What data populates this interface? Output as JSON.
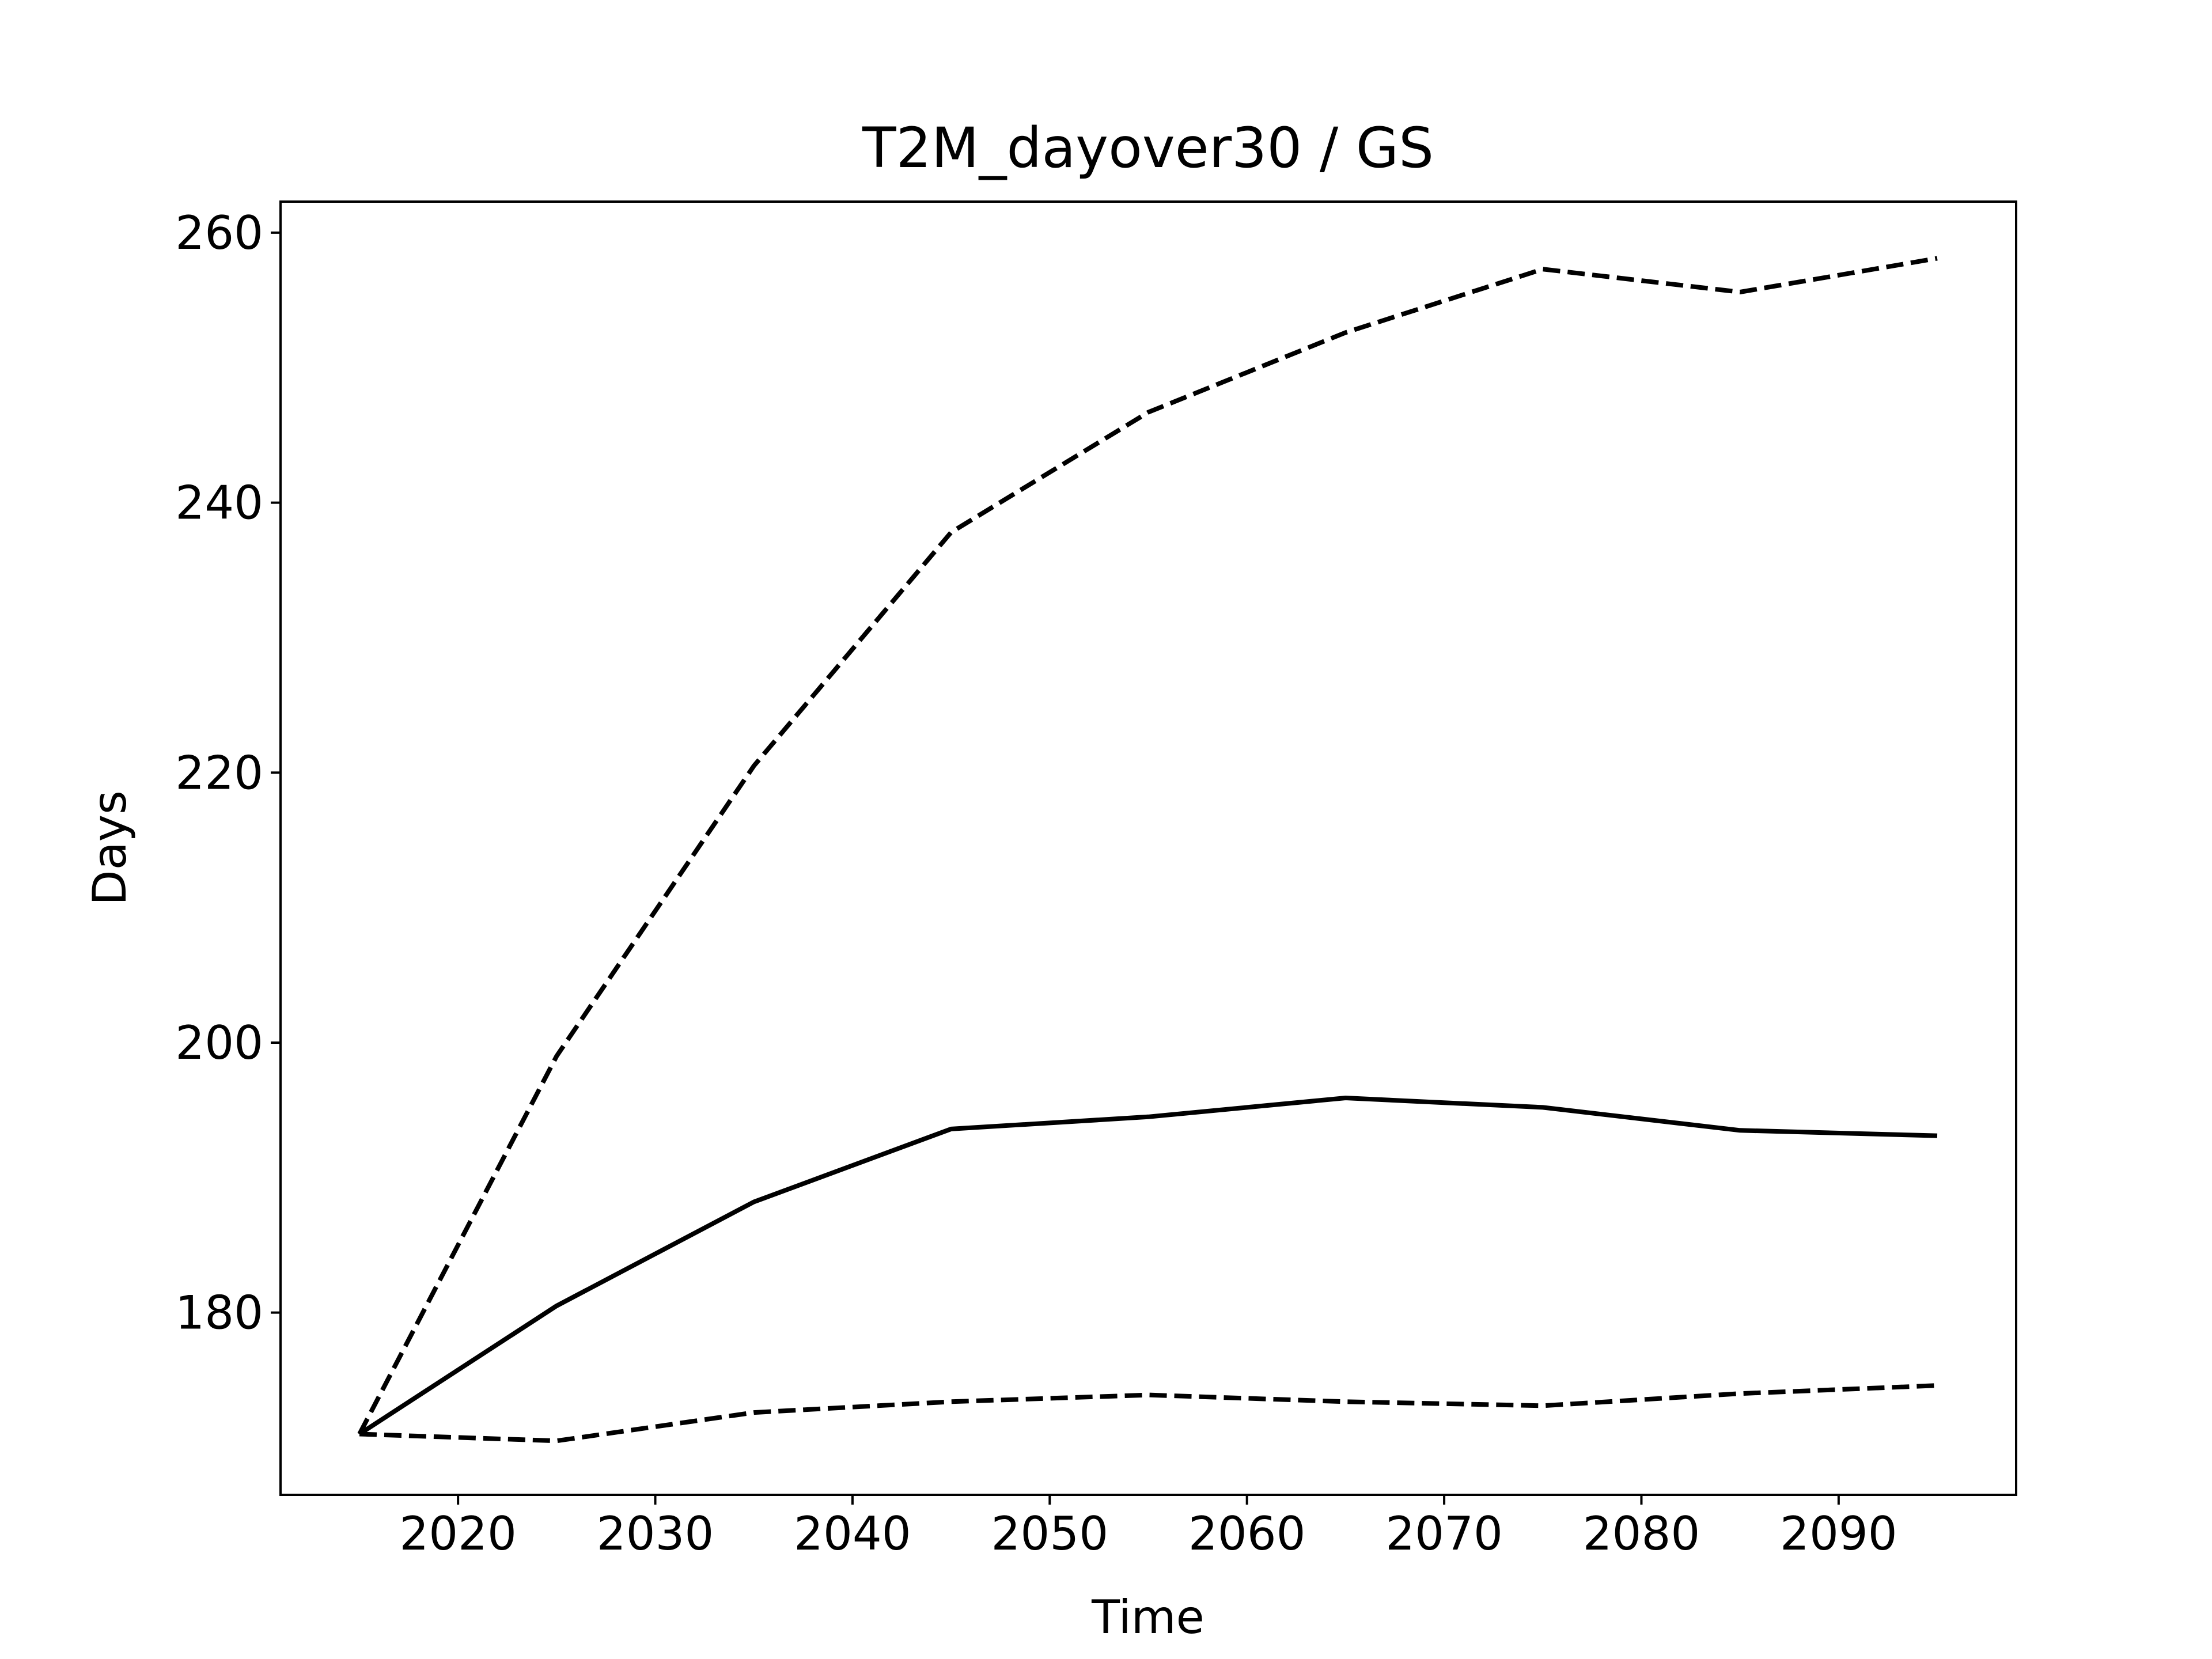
{
  "chart_data": {
    "type": "line",
    "title": "T2M_dayover30 / GS",
    "xlabel": "Time",
    "ylabel": "Days",
    "x": [
      2015,
      2025,
      2035,
      2045,
      2055,
      2065,
      2075,
      2085,
      2095
    ],
    "series": [
      {
        "style": "solid",
        "color": "#000000",
        "values": [
          171,
          180.5,
          188.2,
          193.6,
          194.5,
          195.9,
          195.2,
          193.5,
          193.1
        ]
      },
      {
        "style": "dashed",
        "color": "#000000",
        "values": [
          171,
          199,
          220.5,
          237.8,
          246.7,
          252.6,
          257.3,
          255.6,
          258.1
        ]
      },
      {
        "style": "dashed",
        "color": "#000000",
        "values": [
          171,
          170.5,
          172.6,
          173.4,
          173.9,
          173.4,
          173.1,
          174,
          174.6
        ]
      }
    ],
    "xlim": [
      2011,
      2099
    ],
    "ylim": [
      166.5,
      262.3
    ],
    "xticks": [
      2020,
      2030,
      2040,
      2050,
      2060,
      2070,
      2080,
      2090
    ],
    "yticks": [
      180,
      200,
      220,
      240,
      260
    ],
    "grid": false
  }
}
